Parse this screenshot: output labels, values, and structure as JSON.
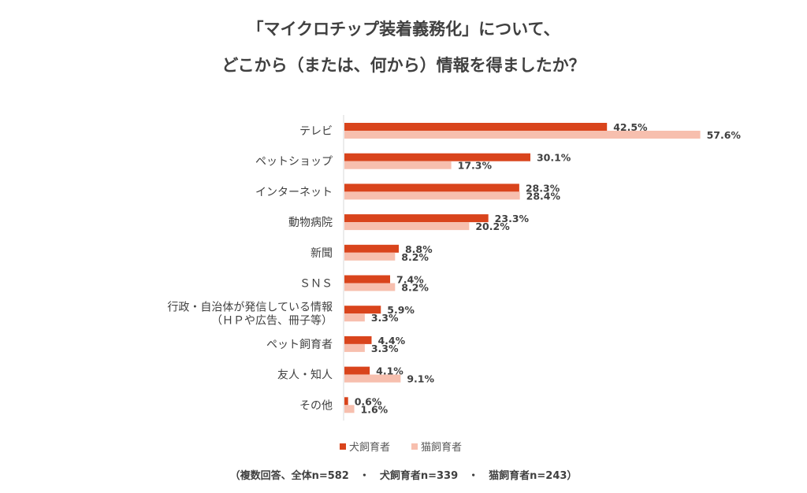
{
  "chart_data": {
    "type": "bar",
    "orientation": "horizontal",
    "title_lines": [
      "「マイクロチップ装着義務化」について、",
      "どこから（または、何から）情報を得ましたか？"
    ],
    "categories": [
      [
        "テレビ"
      ],
      [
        "ペットショップ"
      ],
      [
        "インターネット"
      ],
      [
        "動物病院"
      ],
      [
        "新聞"
      ],
      [
        "ＳＮＳ"
      ],
      [
        "行政・自治体が発信している情報",
        "（ＨＰや広告、冊子等）"
      ],
      [
        "ペット飼育者"
      ],
      [
        "友人・知人"
      ],
      [
        "その他"
      ]
    ],
    "series": [
      {
        "name": "犬飼育者",
        "color": "#d9441c",
        "values": [
          42.5,
          30.1,
          28.3,
          23.3,
          8.8,
          7.4,
          5.9,
          4.4,
          4.1,
          0.6
        ],
        "labels": [
          "42.5%",
          "30.1%",
          "28.3%",
          "23.3%",
          "8.8%",
          "7.4%",
          "5.9%",
          "4.4%",
          "4.1%",
          "0.6%"
        ]
      },
      {
        "name": "猫飼育者",
        "color": "#f7bfae",
        "values": [
          57.6,
          17.3,
          28.4,
          20.2,
          8.2,
          8.2,
          3.3,
          3.3,
          9.1,
          1.6
        ],
        "labels": [
          "57.6%",
          "17.3%",
          "28.4%",
          "20.2%",
          "8.2%",
          "8.2%",
          "3.3%",
          "3.3%",
          "9.1%",
          "1.6%"
        ]
      }
    ],
    "unit": "%",
    "xlim": [
      0,
      60
    ],
    "grid": false,
    "legend_position": "bottom",
    "footnote": "（複数回答、全体n=582　・　犬飼育者n=339　・　猫飼育者n=243）"
  }
}
